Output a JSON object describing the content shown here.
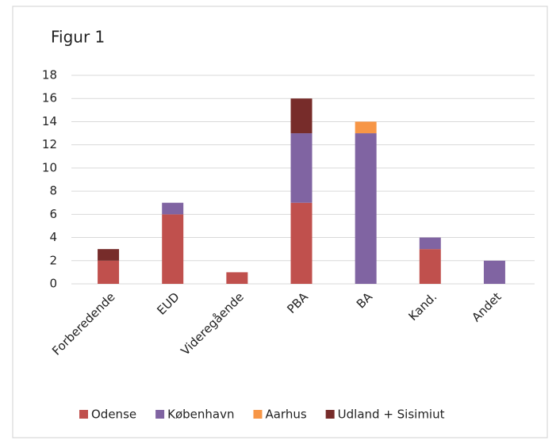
{
  "chart_data": {
    "type": "bar",
    "stacked": true,
    "title": "Figur 1",
    "categories": [
      "Forberedende",
      "EUD",
      "Videregående",
      "PBA",
      "BA",
      "Kand.",
      "Andet"
    ],
    "series": [
      {
        "name": "Odense",
        "color": "#c0504d",
        "values": [
          2,
          6,
          1,
          7,
          0,
          3,
          0
        ]
      },
      {
        "name": "København",
        "color": "#8064a2",
        "values": [
          0,
          1,
          0,
          6,
          13,
          1,
          2
        ]
      },
      {
        "name": "Aarhus",
        "color": "#f79646",
        "values": [
          0,
          0,
          0,
          0,
          1,
          0,
          0
        ]
      },
      {
        "name": "Udland + Sisimiut",
        "color": "#772c2a",
        "values": [
          1,
          0,
          0,
          3,
          0,
          0,
          0
        ]
      }
    ],
    "ylim": [
      0,
      18
    ],
    "yticks": [
      0,
      2,
      4,
      6,
      8,
      10,
      12,
      14,
      16,
      18
    ],
    "grid": true,
    "legend": "bottom"
  }
}
